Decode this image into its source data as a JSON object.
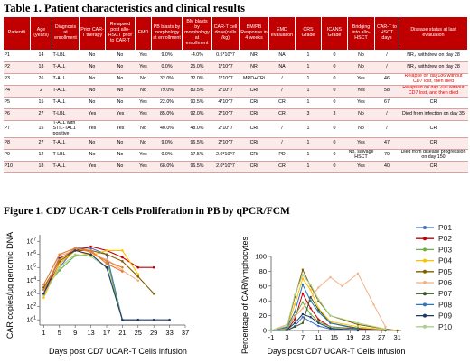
{
  "table_caption": "Table 1. Patient characteristics and clinical results",
  "figure_caption": "Figure 1. CD7 UCAR-T Cells Proliferation in PB by qPCR/FCM",
  "table": {
    "columns": [
      "Patient#",
      "Age (years)",
      "Diagnosis at enrollment",
      "Prior CAR-T therapy",
      "Relapsed post allo-HSCT prior to CAR-T",
      "EMD",
      "PB blasts by morphology at enrollment",
      "BM blasts by morphology at enrollment",
      "CAR-T cell dose(cells /kg)",
      "BM/PB Response in 4 weeks",
      "EMD evaluation",
      "CRS Grade",
      "ICANS Grade",
      "Bridging into allo-HSCT",
      "CAR-T to HSCT days",
      "Disease status at last evaluation"
    ],
    "rows": [
      [
        "P1",
        "14",
        "T-LBL",
        "No",
        "No",
        "Yes",
        "9.0%",
        "-4.0%",
        "0.5*10^7",
        "NR",
        "NA",
        "1",
        "0",
        "No",
        "/",
        "NR，withdrew on day 28"
      ],
      [
        "P2",
        "18",
        "T-ALL",
        "No",
        "No",
        "Yes",
        "0.0%",
        "25.0%",
        "1*10^7",
        "NR",
        "NA",
        "1",
        "0",
        "No",
        "/",
        "NR，withdrew on day 28"
      ],
      [
        "P3",
        "26",
        "T-ALL",
        "No",
        "No",
        "No",
        "32.0%",
        "32.0%",
        "1*10^7",
        "MRD+CRi",
        "/",
        "1",
        "0",
        "Yes",
        "46",
        "Relapse on day186 without CD7 lost, then died"
      ],
      [
        "P4",
        "2",
        "T-ALL",
        "No",
        "No",
        "No",
        "79.0%",
        "80.5%",
        "2*10^7",
        "CRi",
        "/",
        "1",
        "0",
        "Yes",
        "58",
        "Relapsed on day 200 without CD7 lost, and then died"
      ],
      [
        "P5",
        "15",
        "T-ALL",
        "No",
        "No",
        "Yes",
        "22.0%",
        "90.5%",
        "4*10^7",
        "CRi",
        "CR",
        "1",
        "0",
        "Yes",
        "67",
        "CR"
      ],
      [
        "P6",
        "27",
        "T-LBL",
        "Yes",
        "Yes",
        "Yes",
        "85.0%",
        "92.0%",
        "2*10^7",
        "CRi",
        "CR",
        "3",
        "3",
        "No",
        "/",
        "Died from infection on day 35"
      ],
      [
        "P7",
        "15",
        "T-ALL with STIL-TAL1 positive",
        "Yes",
        "Yes",
        "No",
        "40.0%",
        "48.0%",
        "2*10^7",
        "CRi",
        "/",
        "1",
        "0",
        "No",
        "/",
        "CR"
      ],
      [
        "P8",
        "27",
        "T-ALL",
        "No",
        "No",
        "No",
        "9.0%",
        "96.5%",
        "2*10^7",
        "CRi",
        "/",
        "1",
        "0",
        "Yes",
        "47",
        "CR"
      ],
      [
        "P9",
        "12",
        "T-LBL",
        "No",
        "No",
        "Yes",
        "0.0%",
        "17.5%",
        "2.0*10^7",
        "CRi",
        "PD",
        "1",
        "0",
        "No, salvage HSCT",
        "79",
        "Died from disease progression on day 150"
      ],
      [
        "P10",
        "18",
        "T-ALL",
        "Yes",
        "No",
        "Yes",
        "68.0%",
        "96.5%",
        "2.0*10^7",
        "CRi",
        "CR",
        "1",
        "0",
        "Yes",
        "40",
        "CR"
      ]
    ],
    "red_rows": [
      2,
      3
    ]
  },
  "chart_data": [
    {
      "type": "line",
      "ylabel": "CAR copies/μg genomic DNA",
      "xlabel": "Days post CD7 UCAR-T Cells infusion",
      "x_ticks": [
        "1",
        "5",
        "9",
        "13",
        "17",
        "21",
        "25",
        "29",
        "33",
        "37"
      ],
      "y_ticks": [
        "10^1",
        "10^2",
        "10^3",
        "10^4",
        "10^5",
        "10^6",
        "10^7"
      ],
      "xlim": [
        0,
        37
      ],
      "ylim_log10": [
        0.6,
        7.5
      ],
      "series": [
        {
          "color": "#4472c4",
          "x": [
            1,
            5,
            9,
            13,
            17,
            21,
            25
          ],
          "y": [
            1000,
            100000,
            3000000,
            3000000,
            1000000,
            10,
            10
          ]
        },
        {
          "color": "#c00000",
          "x": [
            1,
            5,
            9,
            13,
            17,
            21,
            25,
            29
          ],
          "y": [
            1000,
            200000,
            2000000,
            4000000,
            2000000,
            600000,
            100000,
            100000
          ]
        },
        {
          "color": "#70ad47",
          "x": [
            1,
            5,
            9,
            13,
            17,
            21
          ],
          "y": [
            2000,
            60000,
            800000,
            1000000,
            400000,
            10
          ]
        },
        {
          "color": "#ffc000",
          "x": [
            1,
            5,
            9,
            13,
            17,
            21,
            25
          ],
          "y": [
            500,
            200000,
            2000000,
            800000,
            2000000,
            2000000,
            30000
          ]
        },
        {
          "color": "#7f6000",
          "x": [
            1,
            5,
            9,
            13,
            17,
            21,
            25,
            29
          ],
          "y": [
            3000,
            300000,
            2000000,
            2000000,
            1000000,
            300000,
            20000,
            1000
          ]
        },
        {
          "color": "#f4b183",
          "x": [
            1,
            5,
            9,
            13,
            17,
            21,
            25
          ],
          "y": [
            1000,
            800000,
            2000000,
            1000000,
            400000,
            60000,
            10000
          ]
        },
        {
          "color": "#e07b39",
          "x": [
            1,
            5,
            9,
            13,
            17,
            21
          ],
          "y": [
            5000,
            1000000,
            3000000,
            2000000,
            200000,
            50000
          ]
        },
        {
          "color": "#a9d18e",
          "x": [
            1,
            5,
            9,
            13,
            17,
            21
          ],
          "y": [
            800,
            100000,
            1000000,
            700000,
            100000,
            10
          ]
        },
        {
          "color": "#203864",
          "x": [
            1,
            5,
            9,
            13,
            17,
            21,
            25,
            29,
            33
          ],
          "y": [
            1000,
            500000,
            2000000,
            1000000,
            100000,
            10,
            10,
            10,
            10
          ]
        },
        {
          "color": "#ed7d31",
          "x": [
            1,
            5,
            9,
            13,
            17,
            21
          ],
          "y": [
            2000,
            400000,
            3000000,
            1500000,
            300000,
            100000
          ]
        }
      ]
    },
    {
      "type": "line",
      "ylabel": "Percentage of CAR/lymphocytes",
      "xlabel": "Days post CD7 UCAR-T Cells infusion",
      "x_ticks": [
        "-1",
        "3",
        "7",
        "11",
        "15",
        "19",
        "23",
        "27",
        "31"
      ],
      "y_ticks": [
        "0",
        "20",
        "40",
        "60",
        "80",
        "100"
      ],
      "xlim": [
        -1,
        32
      ],
      "ylim": [
        0,
        100
      ],
      "series": [
        {
          "name": "P01",
          "color": "#4472c4",
          "x": [
            -1,
            3,
            5,
            7,
            9,
            11,
            14,
            21
          ],
          "y": [
            0,
            0,
            6,
            18,
            12,
            6,
            2,
            0
          ]
        },
        {
          "name": "P02",
          "color": "#c00000",
          "x": [
            -1,
            3,
            5,
            7,
            9,
            11,
            14,
            21,
            28
          ],
          "y": [
            0,
            0,
            15,
            50,
            30,
            15,
            5,
            2,
            0
          ]
        },
        {
          "name": "P03",
          "color": "#70ad47",
          "x": [
            -1,
            3,
            5,
            7,
            9,
            11,
            14,
            21
          ],
          "y": [
            0,
            2,
            20,
            38,
            22,
            12,
            5,
            1
          ]
        },
        {
          "name": "P04",
          "color": "#ffc000",
          "x": [
            -1,
            3,
            5,
            7,
            9,
            11,
            14,
            21,
            28
          ],
          "y": [
            0,
            3,
            35,
            70,
            55,
            30,
            12,
            5,
            1
          ]
        },
        {
          "name": "P05",
          "color": "#7f6000",
          "x": [
            -1,
            3,
            5,
            7,
            9,
            11,
            14,
            21,
            28,
            31
          ],
          "y": [
            0,
            5,
            45,
            82,
            60,
            40,
            20,
            8,
            2,
            0
          ]
        },
        {
          "name": "P06",
          "color": "#f4b183",
          "x": [
            -1,
            3,
            7,
            11,
            14,
            17,
            21,
            25,
            28
          ],
          "y": [
            0,
            8,
            30,
            58,
            72,
            60,
            77,
            35,
            5
          ]
        },
        {
          "name": "P07",
          "color": "#375623",
          "x": [
            -1,
            3,
            5,
            7,
            9,
            11,
            14,
            21,
            28
          ],
          "y": [
            0,
            0,
            5,
            10,
            45,
            28,
            10,
            3,
            0
          ]
        },
        {
          "name": "P08",
          "color": "#2e75b6",
          "x": [
            -1,
            3,
            5,
            7,
            9,
            11,
            14,
            21
          ],
          "y": [
            0,
            4,
            25,
            62,
            40,
            25,
            10,
            2
          ]
        },
        {
          "name": "P09",
          "color": "#203864",
          "x": [
            -1,
            3,
            5,
            7,
            9,
            11,
            14,
            21
          ],
          "y": [
            0,
            1,
            10,
            22,
            18,
            10,
            3,
            0
          ]
        },
        {
          "name": "P10",
          "color": "#a9d18e",
          "x": [
            -1,
            3,
            5,
            7,
            9,
            11,
            14,
            21,
            28
          ],
          "y": [
            0,
            6,
            48,
            75,
            62,
            42,
            20,
            10,
            2
          ]
        }
      ]
    }
  ]
}
